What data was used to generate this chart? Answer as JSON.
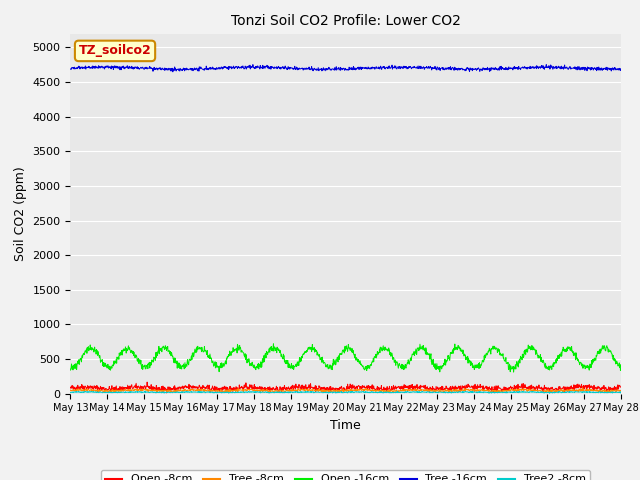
{
  "title": "Tonzi Soil CO2 Profile: Lower CO2",
  "xlabel": "Time",
  "ylabel": "Soil CO2 (ppm)",
  "ylim": [
    0,
    5200
  ],
  "yticks": [
    0,
    500,
    1000,
    1500,
    2000,
    2500,
    3000,
    3500,
    4000,
    4500,
    5000
  ],
  "fig_bg": "#f2f2f2",
  "plot_bg": "#e8e8e8",
  "grid_color": "#ffffff",
  "legend_label_box": "TZ_soilco2",
  "legend_box_bg": "#ffffcc",
  "legend_box_edge": "#cc8800",
  "legend_box_text": "#cc0000",
  "series": [
    {
      "label": "Open -8cm",
      "color": "#ff0000"
    },
    {
      "label": "Tree -8cm",
      "color": "#ff8800"
    },
    {
      "label": "Open -16cm",
      "color": "#00ee00"
    },
    {
      "label": "Tree -16cm",
      "color": "#0000dd"
    },
    {
      "label": "Tree2 -8cm",
      "color": "#00cccc"
    }
  ],
  "n_points": 1500,
  "x_start": 13,
  "x_end": 28,
  "x_ticks": [
    13,
    14,
    15,
    16,
    17,
    18,
    19,
    20,
    21,
    22,
    23,
    24,
    25,
    26,
    27,
    28
  ],
  "x_tick_labels": [
    "May 13",
    "May 14",
    "May 15",
    "May 16",
    "May 17",
    "May 18",
    "May 19",
    "May 20",
    "May 21",
    "May 22",
    "May 23",
    "May 24",
    "May 25",
    "May 26",
    "May 27",
    "May 28"
  ]
}
